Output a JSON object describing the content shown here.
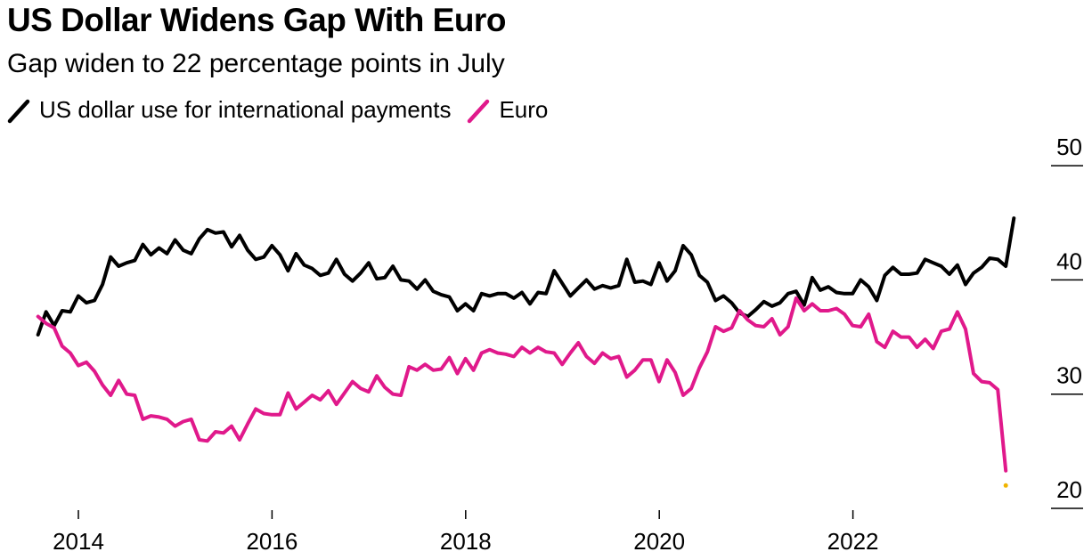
{
  "chart_data": {
    "type": "line",
    "title": "US Dollar Widens Gap With Euro",
    "subtitle": "Gap widen to 22 percentage points in July",
    "xlabel": "",
    "ylabel": "",
    "xlim": [
      2013.5,
      2023.75
    ],
    "ylim": [
      20,
      50
    ],
    "x_ticks": [
      2014,
      2016,
      2018,
      2020,
      2022
    ],
    "x_tick_labels": [
      "2014",
      "2016",
      "2018",
      "2020",
      "2022"
    ],
    "y_ticks": [
      20,
      30,
      40,
      50
    ],
    "y_tick_labels": [
      "20",
      "30",
      "40",
      "50"
    ],
    "legend_position": "top-left",
    "start_year": 2013.583,
    "step": 0.0833,
    "series": [
      {
        "name": "US dollar use for international payments",
        "color": "#000000",
        "values": [
          35.2,
          37.2,
          36.0,
          37.3,
          37.2,
          38.6,
          38.0,
          38.2,
          39.6,
          42.0,
          41.2,
          41.5,
          41.7,
          43.1,
          42.2,
          42.8,
          42.3,
          43.5,
          42.6,
          42.3,
          43.6,
          44.4,
          44.1,
          44.2,
          42.9,
          43.9,
          42.6,
          41.8,
          42.0,
          43.0,
          42.2,
          40.8,
          42.3,
          41.3,
          41.0,
          40.4,
          40.6,
          41.8,
          40.5,
          39.9,
          40.6,
          41.5,
          40.1,
          40.2,
          41.2,
          40.0,
          39.9,
          39.2,
          40.0,
          39.0,
          38.7,
          38.5,
          37.3,
          37.9,
          37.3,
          38.8,
          38.6,
          38.8,
          38.8,
          38.4,
          38.9,
          37.9,
          38.9,
          38.8,
          40.8,
          39.7,
          38.6,
          39.3,
          40.0,
          39.2,
          39.5,
          39.3,
          39.5,
          41.8,
          39.8,
          39.9,
          39.6,
          41.5,
          39.9,
          40.8,
          43.0,
          42.2,
          40.4,
          39.8,
          38.2,
          38.6,
          38.0,
          37.1,
          36.8,
          37.4,
          38.1,
          37.7,
          38.0,
          38.8,
          39.0,
          37.8,
          40.2,
          39.1,
          39.4,
          38.9,
          38.8,
          38.8,
          40.0,
          39.4,
          38.2,
          40.4,
          41.1,
          40.5,
          40.5,
          40.6,
          41.8,
          41.5,
          41.2,
          40.5,
          41.3,
          39.6,
          40.6,
          41.1,
          41.9,
          41.8,
          41.2,
          45.4
        ]
      },
      {
        "name": "Euro",
        "color": "#e0198b",
        "values": [
          36.8,
          36.2,
          35.8,
          34.2,
          33.6,
          32.5,
          32.8,
          32.0,
          30.8,
          29.9,
          31.2,
          30.0,
          29.9,
          27.8,
          28.1,
          28.0,
          27.8,
          27.2,
          27.6,
          27.8,
          26.0,
          25.9,
          26.7,
          26.6,
          27.2,
          26.0,
          27.4,
          28.7,
          28.3,
          28.2,
          28.2,
          30.1,
          28.7,
          29.3,
          29.9,
          29.5,
          30.3,
          29.1,
          30.1,
          31.1,
          30.5,
          30.2,
          31.6,
          30.6,
          30.0,
          29.9,
          32.4,
          32.1,
          32.6,
          32.1,
          32.2,
          33.2,
          31.8,
          33.1,
          32.1,
          33.6,
          33.9,
          33.6,
          33.5,
          33.3,
          34.1,
          33.6,
          34.1,
          33.7,
          33.6,
          32.6,
          33.6,
          34.5,
          33.3,
          32.7,
          33.6,
          33.1,
          33.3,
          31.5,
          32.1,
          33.0,
          33.0,
          31.1,
          33.0,
          31.9,
          29.9,
          30.5,
          32.3,
          33.7,
          35.9,
          35.5,
          35.8,
          37.3,
          36.5,
          36.0,
          35.9,
          36.6,
          35.2,
          35.9,
          38.4,
          37.3,
          37.9,
          37.3,
          37.3,
          37.5,
          37.0,
          36.0,
          35.9,
          37.0,
          34.6,
          34.1,
          35.5,
          35.0,
          35.0,
          34.1,
          34.8,
          34.0,
          35.5,
          35.7,
          37.2,
          35.7,
          31.8,
          31.1,
          31.0,
          30.4,
          23.3
        ]
      }
    ]
  },
  "annotation_dot_color": "#f0b400"
}
